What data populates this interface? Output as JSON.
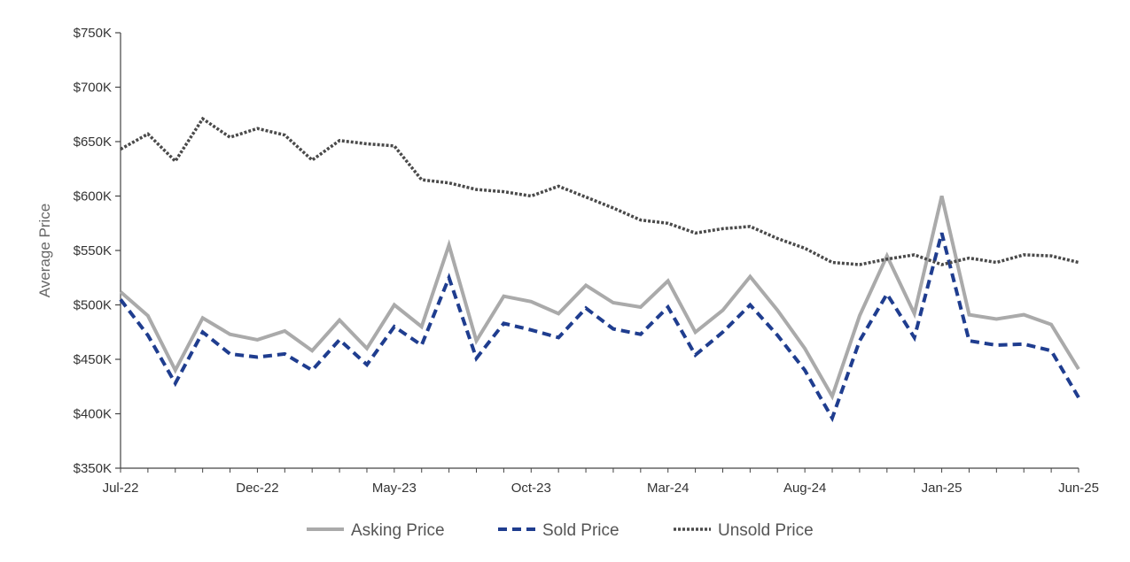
{
  "chart_data": {
    "type": "line",
    "title": "",
    "xlabel": "",
    "ylabel": "Average Price",
    "ylim": [
      350000,
      750000
    ],
    "yticks": [
      350000,
      400000,
      450000,
      500000,
      550000,
      600000,
      650000,
      700000,
      750000
    ],
    "ytick_labels": [
      "$350K",
      "$400K",
      "$450K",
      "$500K",
      "$550K",
      "$600K",
      "$650K",
      "$700K",
      "$750K"
    ],
    "x": [
      "Jul-22",
      "Aug-22",
      "Sep-22",
      "Oct-22",
      "Nov-22",
      "Dec-22",
      "Jan-23",
      "Feb-23",
      "Mar-23",
      "Apr-23",
      "May-23",
      "Jun-23",
      "Jul-23",
      "Aug-23",
      "Sep-23",
      "Oct-23",
      "Nov-23",
      "Dec-23",
      "Jan-24",
      "Feb-24",
      "Mar-24",
      "Apr-24",
      "May-24",
      "Jun-24",
      "Jul-24",
      "Aug-24",
      "Sep-24",
      "Oct-24",
      "Nov-24",
      "Dec-24",
      "Jan-25",
      "Feb-25",
      "Mar-25",
      "Apr-25",
      "May-25",
      "Jun-25"
    ],
    "xtick_labels": [
      "Jul-22",
      "Dec-22",
      "May-23",
      "Oct-23",
      "Mar-24",
      "Aug-24",
      "Jan-25",
      "Jun-25"
    ],
    "xtick_indices": [
      0,
      5,
      10,
      15,
      20,
      25,
      30,
      35
    ],
    "grid": false,
    "legend_position": "bottom",
    "series": [
      {
        "name": "Asking Price",
        "color": "#aaaaaa",
        "style": "solid",
        "values": [
          512000,
          490000,
          440000,
          488000,
          473000,
          468000,
          476000,
          458000,
          486000,
          460000,
          500000,
          480000,
          555000,
          467000,
          508000,
          503000,
          492000,
          518000,
          502000,
          498000,
          522000,
          475000,
          495000,
          526000,
          495000,
          460000,
          416000,
          490000,
          545000,
          492000,
          600000,
          491000,
          487000,
          491000,
          482000,
          441000
        ]
      },
      {
        "name": "Sold Price",
        "color": "#1f3d8f",
        "style": "dashed",
        "values": [
          505000,
          472000,
          428000,
          475000,
          455000,
          452000,
          455000,
          440000,
          468000,
          445000,
          480000,
          463000,
          525000,
          451000,
          483000,
          477000,
          470000,
          497000,
          478000,
          473000,
          498000,
          454000,
          475000,
          500000,
          472000,
          440000,
          396000,
          467000,
          510000,
          470000,
          566000,
          467000,
          463000,
          464000,
          458000,
          415000
        ]
      },
      {
        "name": "Unsold Price",
        "color": "#4a4a4a",
        "style": "dotted",
        "values": [
          643000,
          657000,
          632000,
          671000,
          654000,
          662000,
          656000,
          633000,
          651000,
          648000,
          646000,
          615000,
          612000,
          606000,
          604000,
          600000,
          609000,
          599000,
          589000,
          578000,
          575000,
          566000,
          570000,
          572000,
          561000,
          552000,
          539000,
          537000,
          542000,
          546000,
          537000,
          543000,
          539000,
          546000,
          545000,
          539000
        ]
      }
    ]
  }
}
